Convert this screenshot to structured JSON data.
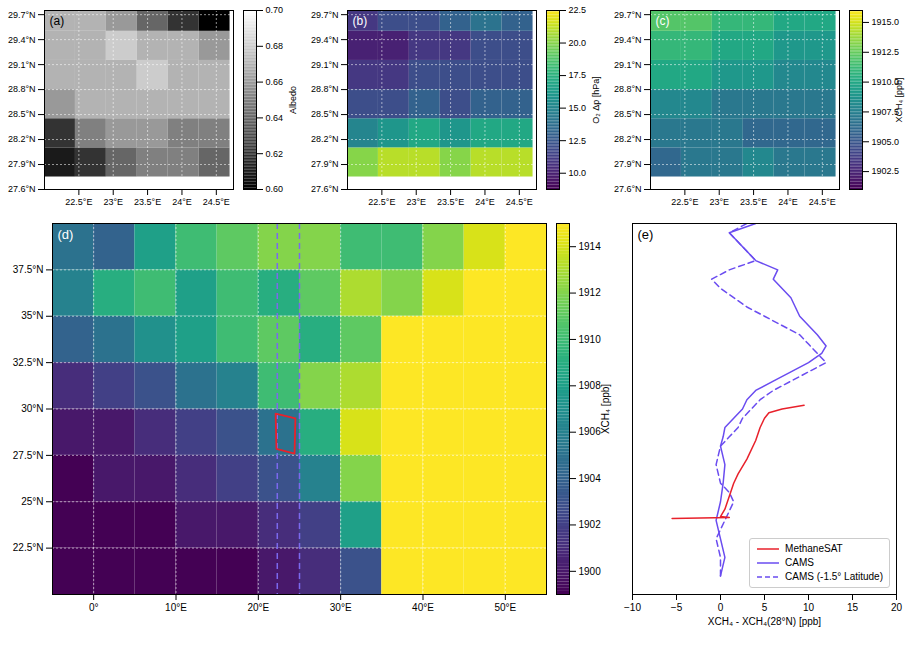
{
  "chart_data": [
    {
      "type": "heatmap",
      "panel": "(a)",
      "color": "gray",
      "grid": true,
      "xlim": [
        22.0,
        24.75
      ],
      "xticks": [
        {
          "value": 22.5,
          "label": "22.5°E"
        },
        {
          "value": 23,
          "label": "23°E"
        },
        {
          "value": 23.5,
          "label": "23.5°E"
        },
        {
          "value": 24,
          "label": "24°E"
        },
        {
          "value": 24.5,
          "label": "24.5°E"
        }
      ],
      "ylim": [
        27.6,
        29.75
      ],
      "yticks": [
        {
          "value": 27.6,
          "label": "27.6°N"
        },
        {
          "value": 27.9,
          "label": "27.9°N"
        },
        {
          "value": 28.2,
          "label": "28.2°N"
        },
        {
          "value": 28.5,
          "label": "28.5°N"
        },
        {
          "value": 28.8,
          "label": "28.8°N"
        },
        {
          "value": 29.1,
          "label": "29.1°N"
        },
        {
          "value": 29.4,
          "label": "29.4°N"
        },
        {
          "value": 29.7,
          "label": "29.7°N"
        }
      ],
      "x_edges": [
        22.0,
        22.45,
        22.9,
        23.35,
        23.8,
        24.25,
        24.7
      ],
      "y_edges": [
        27.75,
        28.1,
        28.45,
        28.8,
        29.15,
        29.5,
        29.75
      ],
      "z": [
        [
          0.61,
          0.62,
          0.64,
          0.65,
          0.65,
          0.64
        ],
        [
          0.62,
          0.65,
          0.66,
          0.66,
          0.65,
          0.65
        ],
        [
          0.66,
          0.67,
          0.67,
          0.67,
          0.67,
          0.67
        ],
        [
          0.67,
          0.67,
          0.67,
          0.68,
          0.67,
          0.67
        ],
        [
          0.67,
          0.67,
          0.68,
          0.67,
          0.67,
          0.66
        ],
        [
          0.67,
          0.67,
          0.66,
          0.64,
          0.62,
          0.6
        ]
      ],
      "clabel": "Albedo",
      "clim": [
        0.6,
        0.7
      ],
      "cticks": [
        {
          "value": 0.6,
          "label": "0.60"
        },
        0.62,
        0.64,
        0.66,
        0.68,
        {
          "value": 0.7,
          "label": "0.70"
        }
      ]
    },
    {
      "type": "heatmap",
      "panel": "(b)",
      "color": "viridis",
      "grid": true,
      "xlim": [
        22.0,
        24.75
      ],
      "xticks": [
        {
          "value": 22.5,
          "label": "22.5°E"
        },
        {
          "value": 23,
          "label": "23°E"
        },
        {
          "value": 23.5,
          "label": "23.5°E"
        },
        {
          "value": 24,
          "label": "24°E"
        },
        {
          "value": 24.5,
          "label": "24.5°E"
        }
      ],
      "ylim": [
        27.6,
        29.75
      ],
      "yticks": [
        {
          "value": 27.6,
          "label": "27.6°N"
        },
        {
          "value": 27.9,
          "label": "27.9°N"
        },
        {
          "value": 28.2,
          "label": "28.2°N"
        },
        {
          "value": 28.5,
          "label": "28.5°N"
        },
        {
          "value": 28.8,
          "label": "28.8°N"
        },
        {
          "value": 29.1,
          "label": "29.1°N"
        },
        {
          "value": 29.4,
          "label": "29.4°N"
        },
        {
          "value": 29.7,
          "label": "29.7°N"
        }
      ],
      "x_edges": [
        22.0,
        22.45,
        22.9,
        23.35,
        23.8,
        24.25,
        24.7
      ],
      "y_edges": [
        27.75,
        28.1,
        28.45,
        28.8,
        29.15,
        29.5,
        29.75
      ],
      "z": [
        [
          20,
          21,
          21,
          20,
          21,
          21
        ],
        [
          15,
          16,
          17,
          16,
          17,
          17
        ],
        [
          12,
          12,
          13,
          12,
          13,
          13
        ],
        [
          11,
          11,
          12,
          12,
          12,
          12
        ],
        [
          10,
          10,
          11,
          11,
          12,
          12
        ],
        [
          11,
          12,
          12,
          13,
          14,
          13
        ]
      ],
      "clabel": "O₂ Δp [hPa]",
      "clim": [
        8.75,
        22.5
      ],
      "cticks": [
        {
          "value": 10,
          "label": "10.0"
        },
        12.5,
        {
          "value": 15,
          "label": "15.0"
        },
        17.5,
        {
          "value": 20,
          "label": "20.0"
        },
        22.5
      ]
    },
    {
      "type": "heatmap",
      "panel": "(c)",
      "color": "viridis",
      "grid": true,
      "xlim": [
        22.0,
        24.75
      ],
      "xticks": [
        {
          "value": 22.5,
          "label": "22.5°E"
        },
        {
          "value": 23,
          "label": "23°E"
        },
        {
          "value": 23.5,
          "label": "23.5°E"
        },
        {
          "value": 24,
          "label": "24°E"
        },
        {
          "value": 24.5,
          "label": "24.5°E"
        }
      ],
      "ylim": [
        27.6,
        29.75
      ],
      "yticks": [
        {
          "value": 27.6,
          "label": "27.6°N"
        },
        {
          "value": 27.9,
          "label": "27.9°N"
        },
        {
          "value": 28.2,
          "label": "28.2°N"
        },
        {
          "value": 28.5,
          "label": "28.5°N"
        },
        {
          "value": 28.8,
          "label": "28.8°N"
        },
        {
          "value": 29.1,
          "label": "29.1°N"
        },
        {
          "value": 29.4,
          "label": "29.4°N"
        },
        {
          "value": 29.7,
          "label": "29.7°N"
        }
      ],
      "x_edges": [
        22.0,
        22.45,
        22.9,
        23.35,
        23.8,
        24.25,
        24.7
      ],
      "y_edges": [
        27.75,
        28.1,
        28.45,
        28.8,
        29.15,
        29.5,
        29.75
      ],
      "z": [
        [
          1906,
          1907,
          1907,
          1908,
          1907,
          1907
        ],
        [
          1907,
          1907,
          1907,
          1906,
          1906,
          1906
        ],
        [
          1908,
          1908,
          1907,
          1907,
          1907,
          1907
        ],
        [
          1910,
          1910,
          1909,
          1909,
          1908,
          1908
        ],
        [
          1911,
          1911,
          1910,
          1910,
          1909,
          1909
        ],
        [
          1912,
          1912,
          1911,
          1911,
          1910,
          1910
        ]
      ],
      "clabel": "XCH₄ [ppb]",
      "clim": [
        1901,
        1916
      ],
      "cticks": [
        1902.5,
        {
          "value": 1905,
          "label": "1905.0"
        },
        1907.5,
        {
          "value": 1910,
          "label": "1910.0"
        },
        1912.5,
        {
          "value": 1915,
          "label": "1915.0"
        }
      ]
    },
    {
      "type": "heatmap",
      "panel": "(d)",
      "color": "viridis",
      "grid": true,
      "xlim": [
        -5,
        55
      ],
      "xticks": [
        {
          "value": 0,
          "label": "0°"
        },
        {
          "value": 10,
          "label": "10°E"
        },
        {
          "value": 20,
          "label": "20°E"
        },
        {
          "value": 30,
          "label": "30°E"
        },
        {
          "value": 40,
          "label": "40°E"
        },
        {
          "value": 50,
          "label": "50°E"
        }
      ],
      "ylim": [
        20,
        40
      ],
      "yticks": [
        {
          "value": 22.5,
          "label": "22.5°N"
        },
        {
          "value": 25,
          "label": "25°N"
        },
        {
          "value": 27.5,
          "label": "27.5°N"
        },
        {
          "value": 30,
          "label": "30°N"
        },
        {
          "value": 32.5,
          "label": "32.5°N"
        },
        {
          "value": 35,
          "label": "35°N"
        },
        {
          "value": 37.5,
          "label": "37.5°N"
        }
      ],
      "x_edges": [
        -5,
        0,
        5,
        10,
        15,
        20,
        25,
        30,
        35,
        40,
        45,
        50,
        55
      ],
      "y_edges": [
        20,
        22.5,
        25,
        27.5,
        30,
        32.5,
        35,
        37.5,
        40
      ],
      "z": [
        [
          1899,
          1899,
          1899,
          1899,
          1899,
          1900,
          1901,
          1903,
          1916,
          1916,
          1916,
          1916
        ],
        [
          1899,
          1899,
          1899,
          1900,
          1900,
          1901,
          1902,
          1908,
          1916,
          1916,
          1916,
          1916
        ],
        [
          1899,
          1900,
          1900,
          1901,
          1902,
          1903,
          1906,
          1912,
          1916,
          1916,
          1916,
          1916
        ],
        [
          1900,
          1900,
          1901,
          1902,
          1903,
          1905,
          1909,
          1914,
          1916,
          1916,
          1916,
          1916
        ],
        [
          1901,
          1902,
          1903,
          1905,
          1906,
          1910,
          1912,
          1913,
          1916,
          1916,
          1916,
          1916
        ],
        [
          1904,
          1905,
          1907,
          1908,
          1910,
          1911,
          1909,
          1911,
          1915,
          1916,
          1916,
          1916
        ],
        [
          1906,
          1909,
          1910,
          1908,
          1910,
          1909,
          1911,
          1913,
          1912,
          1914,
          1916,
          1916
        ],
        [
          1905,
          1904,
          1908,
          1910,
          1911,
          1912,
          1912,
          1910,
          1910,
          1912,
          1914,
          1916
        ]
      ],
      "outline": {
        "lon": [
          22.1,
          24.5,
          24.4,
          22.2,
          22.1
        ],
        "lat": [
          29.75,
          29.5,
          27.6,
          27.85,
          29.75
        ]
      },
      "transects": [
        22.3,
        25.0
      ],
      "clabel": "XCH₄ [ppb]",
      "clim": [
        1899,
        1915
      ],
      "cticks": [
        1900,
        1902,
        1904,
        1906,
        1908,
        1910,
        1912,
        1914
      ]
    },
    {
      "type": "line",
      "panel": "(e)",
      "legend": "lower right",
      "tick_labels": "x",
      "xlabel": "XCH₄ - XCH₄(28°N) [ppb]",
      "xlim": [
        -10,
        20
      ],
      "xticks": [
        {
          "value": -10,
          "label": "−10"
        },
        {
          "value": -5,
          "label": "−5"
        },
        0,
        5,
        10,
        15,
        20
      ],
      "ylim": [
        20,
        40
      ],
      "series": [
        {
          "name": "MethaneSAT",
          "color": "#e8212b",
          "line_style": "solid",
          "x": [
            -5.5,
            1,
            0,
            0.5,
            1,
            1.5,
            2,
            3,
            4,
            4.5,
            5,
            5.5,
            7,
            9.5
          ],
          "y": [
            24.1,
            24.15,
            24.2,
            24.6,
            25.3,
            26,
            26.5,
            27.3,
            28.3,
            29,
            29.5,
            29.8,
            30,
            30.2
          ]
        },
        {
          "name": "CAMS",
          "color": "#6a4cf0",
          "line_style": "solid",
          "x": [
            0,
            0.5,
            0,
            -0.5,
            0,
            0.3,
            0.5,
            0,
            0.3,
            0.5,
            1.5,
            2.5,
            3,
            4,
            6,
            8,
            10,
            11.5,
            12,
            11,
            10,
            9,
            8.5,
            8,
            7,
            6,
            6.5,
            4,
            3,
            2,
            1,
            4
          ],
          "y": [
            21,
            22,
            23,
            24,
            25,
            26,
            27,
            28,
            28.5,
            29,
            29.5,
            30,
            30.5,
            31,
            31.5,
            32,
            32.5,
            33,
            33.4,
            34,
            34.5,
            35,
            35.5,
            36,
            36.5,
            37,
            37.5,
            38,
            38.5,
            39,
            39.5,
            40
          ]
        },
        {
          "name": "CAMS (-1.5° Latitude)",
          "color": "#6a4cf0",
          "line_style": "dashed",
          "x": [
            0,
            0,
            -0.5,
            0.5,
            1.5,
            1,
            0,
            -0.5,
            0,
            1,
            2,
            2.5,
            3.5,
            4.5,
            6,
            8,
            10,
            12,
            11,
            10,
            9,
            7,
            5,
            3,
            1.5,
            0,
            -1,
            1,
            4,
            3,
            2,
            1,
            3
          ],
          "y": [
            21,
            22,
            23,
            24,
            25,
            25.5,
            26,
            27,
            28,
            28.5,
            29,
            29.5,
            30,
            30.5,
            31,
            31.5,
            32,
            32.5,
            33,
            33.5,
            34,
            34.5,
            35,
            35.5,
            36,
            36.5,
            37,
            37.5,
            38,
            38.5,
            39,
            39.5,
            40
          ]
        }
      ]
    }
  ]
}
